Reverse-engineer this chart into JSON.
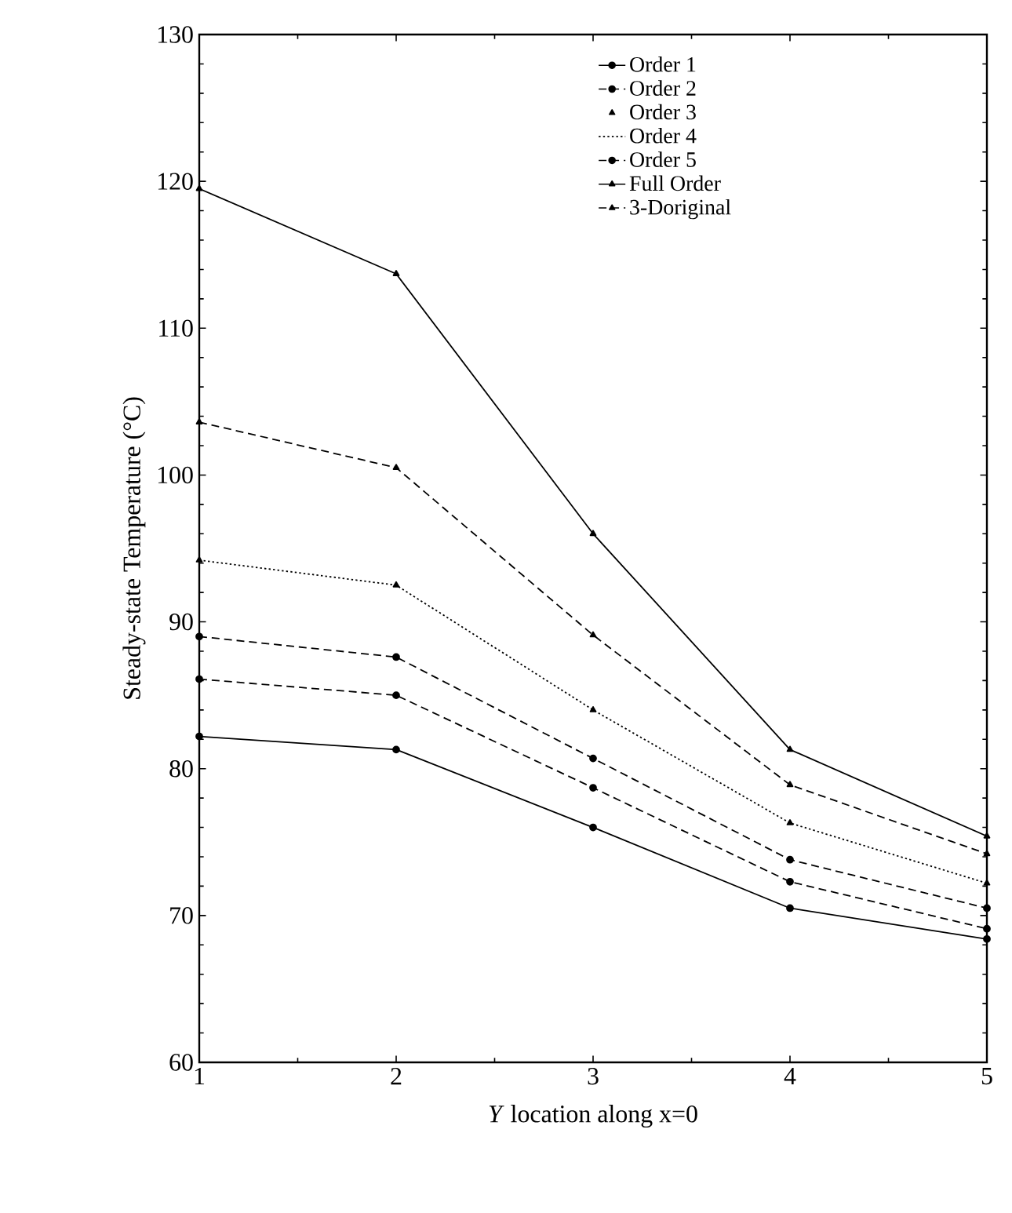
{
  "chart_data": {
    "type": "line",
    "xlabel": "*Y* location along x=0",
    "ylabel": "Steady-state Temperature (°C)",
    "x": [
      1,
      2,
      3,
      4,
      5
    ],
    "xlim": [
      1,
      5
    ],
    "xticks": [
      1,
      2,
      3,
      4,
      5
    ],
    "ylim": [
      60,
      130
    ],
    "yticks": [
      60,
      70,
      80,
      90,
      100,
      110,
      120,
      130
    ],
    "legend": "top right",
    "grid": false,
    "series": [
      {
        "name": "Order 1",
        "color": "#000000",
        "marker": "circle",
        "line_style": "solid",
        "values": [
          82.2,
          81.3,
          76.0,
          70.5,
          68.4
        ]
      },
      {
        "name": "Order 2",
        "color": "#000000",
        "marker": "circle",
        "line_style": "dashed",
        "values": [
          89.0,
          87.6,
          80.7,
          73.8,
          70.5
        ]
      },
      {
        "name": "Order 3",
        "type": "scatter",
        "color": "#000000",
        "marker": "triangle",
        "values": [
          94.2,
          92.5,
          84.0,
          76.3,
          72.2
        ]
      },
      {
        "name": "Order 4",
        "color": "#000000",
        "marker": "none",
        "line_style": "dotted",
        "values": [
          94.2,
          92.5,
          84.0,
          76.3,
          72.2
        ]
      },
      {
        "name": "Order 5",
        "color": "#000000",
        "marker": "circle",
        "line_style": "dashed",
        "values": [
          86.1,
          85.0,
          78.7,
          72.3,
          69.1
        ]
      },
      {
        "name": "Full Order",
        "color": "#000000",
        "marker": "triangle",
        "line_style": "solid",
        "values": [
          119.5,
          113.7,
          96.0,
          81.3,
          75.4
        ]
      },
      {
        "name": "3-Doriginal",
        "color": "#000000",
        "marker": "triangle",
        "line_style": "dashed",
        "values": [
          103.6,
          100.5,
          89.1,
          78.9,
          74.2
        ]
      }
    ]
  }
}
